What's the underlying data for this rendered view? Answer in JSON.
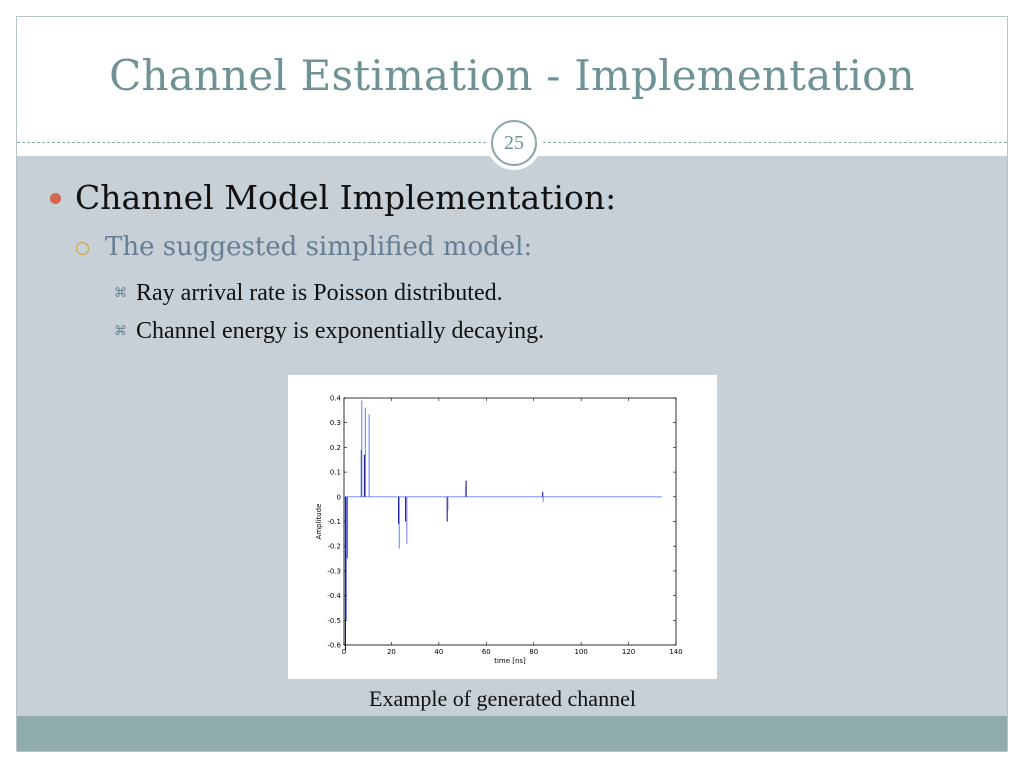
{
  "slide": {
    "title": "Channel Estimation - Implementation",
    "page_number": "25"
  },
  "content": {
    "level1": "Channel Model Implementation:",
    "level2": "The suggested simplified model:",
    "level3": [
      "Ray arrival rate is Poisson distributed.",
      "Channel energy is exponentially decaying."
    ],
    "level3_marker": "⌘"
  },
  "figure": {
    "caption": "Example of generated channel"
  },
  "colors": {
    "title": "#6f9295",
    "body_bg": "#c6d0d6",
    "footer_band": "#8fabad",
    "bullet_l1": "#d4674f",
    "bullet_l2": "#c9a13a",
    "text_l2": "#687d92",
    "series_dark": "#00007f",
    "series_light": "#6a7bff"
  },
  "chart_data": {
    "type": "line",
    "title": "",
    "xlabel": "time [ns]",
    "ylabel": "Amplitude",
    "xlim": [
      0,
      140
    ],
    "ylim": [
      -0.6,
      0.4
    ],
    "xticks": [
      0,
      20,
      40,
      60,
      80,
      100,
      120,
      140
    ],
    "yticks": [
      0.4,
      0.3,
      0.2,
      0.1,
      0,
      -0.1,
      -0.2,
      -0.3,
      -0.4,
      -0.5,
      -0.6
    ],
    "grid": false,
    "baseline_end": 134,
    "series": [
      {
        "color": "dark",
        "impulses": [
          {
            "x": 0.6,
            "y": -0.62
          },
          {
            "x": 1.3,
            "y": -0.25
          },
          {
            "x": 7.3,
            "y": 0.19
          },
          {
            "x": 8.6,
            "y": 0.17
          },
          {
            "x": 23.0,
            "y": -0.11
          },
          {
            "x": 26.0,
            "y": -0.1
          },
          {
            "x": 43.5,
            "y": -0.1
          },
          {
            "x": 51.5,
            "y": 0.065
          },
          {
            "x": 83.8,
            "y": 0.02
          }
        ]
      },
      {
        "color": "light",
        "impulses": [
          {
            "x": 1.0,
            "y": -0.5
          },
          {
            "x": 7.5,
            "y": 0.39
          },
          {
            "x": 9.0,
            "y": 0.36
          },
          {
            "x": 10.6,
            "y": 0.335
          },
          {
            "x": 23.3,
            "y": -0.21
          },
          {
            "x": 26.5,
            "y": -0.19
          },
          {
            "x": 43.8,
            "y": -0.055
          },
          {
            "x": 51.2,
            "y": 0.04
          },
          {
            "x": 84.0,
            "y": -0.02
          }
        ]
      }
    ]
  }
}
